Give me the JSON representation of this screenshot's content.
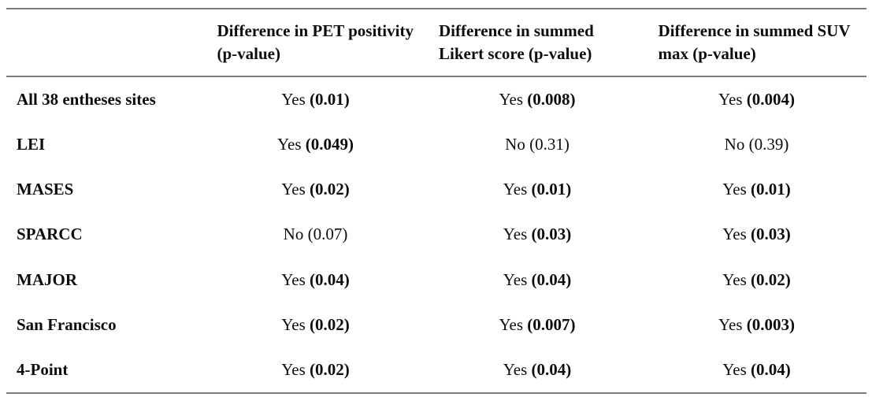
{
  "colors": {
    "background": "#ffffff",
    "text": "#0d0d0d",
    "rule": "#7a7a7a"
  },
  "table": {
    "columns": [
      {
        "label": ""
      },
      {
        "label": "Difference in PET positivity (p-value)",
        "line1": "Difference in PET",
        "line2": "positivity (p-value)"
      },
      {
        "label": "Difference in summed Likert score (p-value)",
        "line1": "Difference in summed",
        "line2": "Likert score (p-value)"
      },
      {
        "label": "Difference in summed SUV max (p-value)",
        "line1": "Difference in summed",
        "line2": "SUV max (p-value)"
      }
    ],
    "rows": [
      {
        "label": "All 38 entheses sites",
        "cells": [
          {
            "answer": "Yes",
            "p_value": "(0.01)",
            "significant": true
          },
          {
            "answer": "Yes",
            "p_value": "(0.008)",
            "significant": true
          },
          {
            "answer": "Yes",
            "p_value": "(0.004)",
            "significant": true
          }
        ]
      },
      {
        "label": "LEI",
        "cells": [
          {
            "answer": "Yes",
            "p_value": "(0.049)",
            "significant": true
          },
          {
            "answer": "No",
            "p_value": "(0.31)",
            "significant": false
          },
          {
            "answer": "No",
            "p_value": "(0.39)",
            "significant": false
          }
        ]
      },
      {
        "label": "MASES",
        "cells": [
          {
            "answer": "Yes",
            "p_value": "(0.02)",
            "significant": true
          },
          {
            "answer": "Yes",
            "p_value": "(0.01)",
            "significant": true
          },
          {
            "answer": "Yes",
            "p_value": "(0.01)",
            "significant": true
          }
        ]
      },
      {
        "label": "SPARCC",
        "cells": [
          {
            "answer": "No",
            "p_value": "(0.07)",
            "significant": false
          },
          {
            "answer": "Yes",
            "p_value": "(0.03)",
            "significant": true
          },
          {
            "answer": "Yes",
            "p_value": "(0.03)",
            "significant": true
          }
        ]
      },
      {
        "label": "MAJOR",
        "cells": [
          {
            "answer": "Yes",
            "p_value": "(0.04)",
            "significant": true
          },
          {
            "answer": "Yes",
            "p_value": "(0.04)",
            "significant": true
          },
          {
            "answer": "Yes",
            "p_value": "(0.02)",
            "significant": true
          }
        ]
      },
      {
        "label": "San Francisco",
        "cells": [
          {
            "answer": "Yes",
            "p_value": "(0.02)",
            "significant": true
          },
          {
            "answer": "Yes",
            "p_value": "(0.007)",
            "significant": true
          },
          {
            "answer": "Yes",
            "p_value": "(0.003)",
            "significant": true
          }
        ]
      },
      {
        "label": "4-Point",
        "cells": [
          {
            "answer": "Yes",
            "p_value": "(0.02)",
            "significant": true
          },
          {
            "answer": "Yes",
            "p_value": "(0.04)",
            "significant": true
          },
          {
            "answer": "Yes",
            "p_value": "(0.04)",
            "significant": true
          }
        ]
      }
    ]
  }
}
